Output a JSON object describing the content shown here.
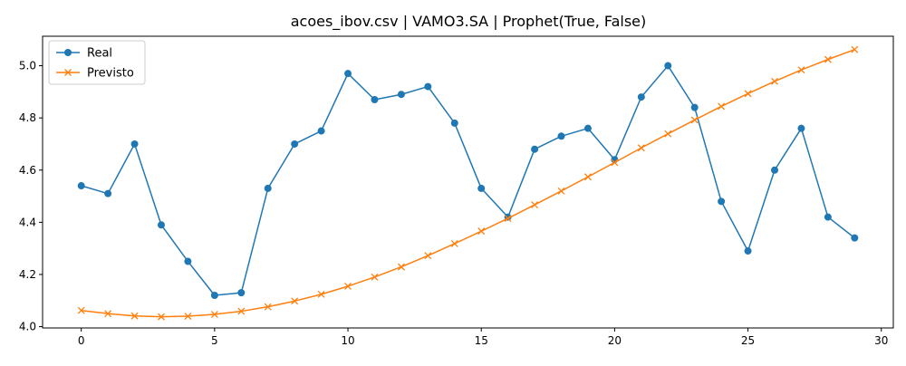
{
  "chart_data": {
    "type": "line",
    "title": "acoes_ibov.csv | VAMO3.SA | Prophet(True, False)",
    "xlabel": "",
    "ylabel": "",
    "xlim": [
      -1.45,
      30.45
    ],
    "ylim": [
      3.995,
      5.113
    ],
    "xticks": [
      0,
      5,
      10,
      15,
      20,
      25,
      30
    ],
    "yticks": [
      4.0,
      4.2,
      4.4,
      4.6,
      4.8,
      5.0
    ],
    "yticklabels": [
      "4.0",
      "4.2",
      "4.4",
      "4.6",
      "4.8",
      "5.0"
    ],
    "grid": false,
    "legend": "top-left",
    "x": [
      0,
      1,
      2,
      3,
      4,
      5,
      6,
      7,
      8,
      9,
      10,
      11,
      12,
      13,
      14,
      15,
      16,
      17,
      18,
      19,
      20,
      21,
      22,
      23,
      24,
      25,
      26,
      27,
      28,
      29
    ],
    "series": [
      {
        "name": "Real",
        "color": "#1f77b4",
        "marker": "circle",
        "values": [
          4.54,
          4.51,
          4.7,
          4.39,
          4.25,
          4.12,
          4.13,
          4.53,
          4.7,
          4.75,
          4.97,
          4.87,
          4.89,
          4.92,
          4.78,
          4.53,
          4.42,
          4.68,
          4.73,
          4.76,
          4.64,
          4.88,
          5.0,
          4.84,
          4.48,
          4.29,
          4.6,
          4.76,
          4.42,
          4.34
        ]
      },
      {
        "name": "Previsto",
        "color": "#ff7f0e",
        "marker": "x",
        "values": [
          4.062,
          4.05,
          4.041,
          4.038,
          4.04,
          4.047,
          4.059,
          4.076,
          4.098,
          4.124,
          4.155,
          4.19,
          4.229,
          4.272,
          4.318,
          4.366,
          4.415,
          4.467,
          4.52,
          4.574,
          4.629,
          4.685,
          4.739,
          4.792,
          4.844,
          4.893,
          4.94,
          4.984,
          5.024,
          5.062
        ]
      }
    ]
  }
}
